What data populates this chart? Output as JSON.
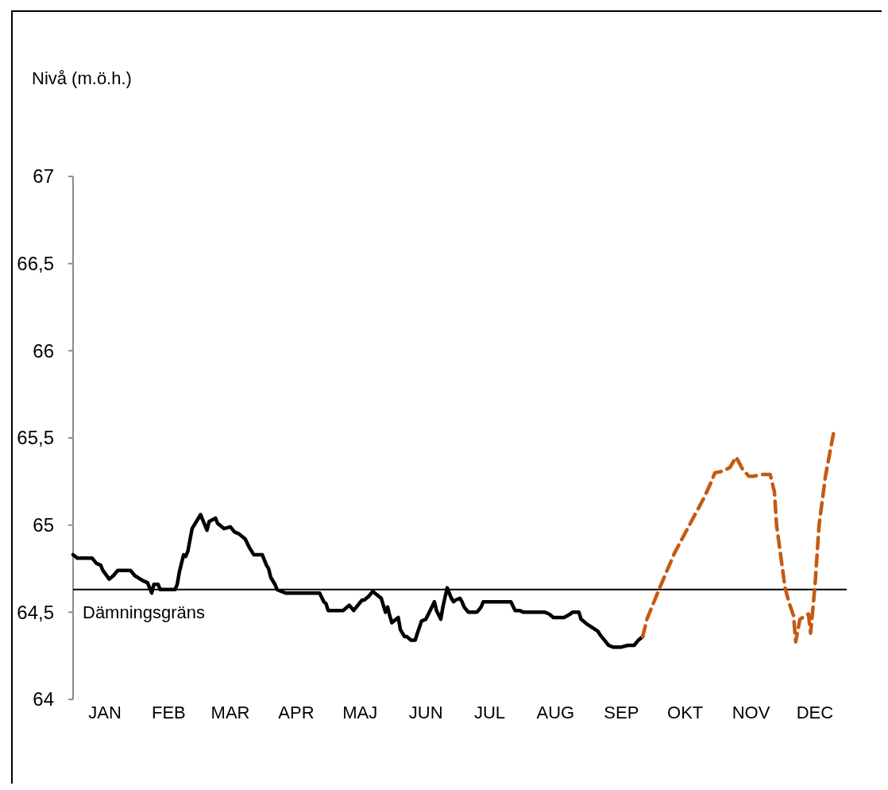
{
  "chart_data": {
    "type": "line",
    "ylabel": "Nivå (m.ö.h.)",
    "xlim": [
      "--01-01",
      "--12-31"
    ],
    "xticks": [
      {
        "value": "--01-16",
        "label": "JAN"
      },
      {
        "value": "--02-15",
        "label": "FEB"
      },
      {
        "value": "--03-16",
        "label": "MAR"
      },
      {
        "value": "--04-16",
        "label": "APR"
      },
      {
        "value": "--05-16",
        "label": "MAJ"
      },
      {
        "value": "--06-16",
        "label": "JUN"
      },
      {
        "value": "--07-16",
        "label": "JUL"
      },
      {
        "value": "--08-16",
        "label": "AUG"
      },
      {
        "value": "--09-16",
        "label": "SEP"
      },
      {
        "value": "--10-16",
        "label": "OKT"
      },
      {
        "value": "--11-16",
        "label": "NOV"
      },
      {
        "value": "--12-16",
        "label": "DEC"
      }
    ],
    "ylim": [
      64,
      67
    ],
    "yticks": [
      64,
      {
        "value": 64.5,
        "label": "64,5"
      },
      65,
      {
        "value": 65.5,
        "label": "65,5"
      },
      66,
      {
        "value": 66.5,
        "label": "66,5"
      },
      67
    ],
    "grid": false,
    "marker": "none",
    "ref_lines": [
      {
        "axis": "y",
        "value": 64.63,
        "label": "Dämningsgräns",
        "color": "#000000"
      }
    ],
    "series": [
      {
        "color": "#000000",
        "line_style": "solid",
        "x": [
          "--01-01",
          "--01-03",
          "--01-10",
          "--01-12",
          "--01-14",
          "--01-15",
          "--01-18",
          "--01-20",
          "--01-22",
          "--01-28",
          "--01-30",
          "--02-03",
          "--02-05",
          "--02-07",
          "--02-08",
          "--02-10",
          "--02-11",
          "--02-18",
          "--02-19",
          "--02-20",
          "--02-22",
          "--02-23",
          "--02-24",
          "--02-26",
          "--03-02",
          "--03-03",
          "--03-05",
          "--03-06",
          "--03-09",
          "--03-10",
          "--03-13",
          "--03-16",
          "--03-18",
          "--03-20",
          "--03-23",
          "--03-25",
          "--03-27",
          "--03-31",
          "--04-02",
          "--04-03",
          "--04-04",
          "--04-06",
          "--04-07",
          "--04-11",
          "--04-27",
          "--04-29",
          "--04-30",
          "--05-01",
          "--05-08",
          "--05-11",
          "--05-13",
          "--05-17",
          "--05-18",
          "--05-20",
          "--05-22",
          "--05-24",
          "--05-26",
          "--05-28",
          "--05-29",
          "--05-30",
          "--05-31",
          "--06-03",
          "--06-04",
          "--06-06",
          "--06-07",
          "--06-09",
          "--06-11",
          "--06-12",
          "--06-14",
          "--06-16",
          "--06-18",
          "--06-20",
          "--06-21",
          "--06-23",
          "--06-24",
          "--06-26",
          "--06-28",
          "--06-29",
          "--06-30",
          "--07-02",
          "--07-03",
          "--07-04",
          "--07-06",
          "--07-10",
          "--07-12",
          "--07-13",
          "--07-26",
          "--07-28",
          "--07-30",
          "--08-01",
          "--08-11",
          "--08-13",
          "--08-15",
          "--08-20",
          "--08-23",
          "--08-24",
          "--08-27",
          "--08-28",
          "--08-31",
          "--09-05",
          "--09-06",
          "--09-08",
          "--09-10",
          "--09-12",
          "--09-16",
          "--09-19",
          "--09-22",
          "--09-24",
          "--09-26"
        ],
        "values": [
          64.83,
          64.81,
          64.81,
          64.78,
          64.77,
          64.74,
          64.69,
          64.71,
          64.74,
          64.74,
          64.71,
          64.68,
          64.67,
          64.61,
          64.66,
          64.66,
          64.63,
          64.63,
          64.66,
          64.73,
          64.83,
          64.82,
          64.85,
          64.98,
          65.06,
          65.03,
          64.97,
          65.02,
          65.04,
          65.01,
          64.98,
          64.99,
          64.96,
          64.95,
          64.92,
          64.87,
          64.83,
          64.83,
          64.77,
          64.75,
          64.7,
          64.66,
          64.63,
          64.61,
          64.61,
          64.56,
          64.55,
          64.51,
          64.51,
          64.54,
          64.51,
          64.57,
          64.57,
          64.59,
          64.62,
          64.6,
          64.58,
          64.5,
          64.53,
          64.48,
          64.44,
          64.47,
          64.4,
          64.36,
          64.36,
          64.34,
          64.34,
          64.38,
          64.45,
          64.46,
          64.51,
          64.56,
          64.51,
          64.46,
          64.53,
          64.64,
          64.58,
          64.56,
          64.57,
          64.58,
          64.56,
          64.53,
          64.5,
          64.5,
          64.53,
          64.56,
          64.56,
          64.51,
          64.51,
          64.5,
          64.5,
          64.49,
          64.47,
          64.47,
          64.49,
          64.5,
          64.5,
          64.46,
          64.43,
          64.39,
          64.37,
          64.34,
          64.31,
          64.3,
          64.3,
          64.31,
          64.31,
          64.34,
          64.36
        ]
      },
      {
        "color": "#c55a11",
        "line_style": "dashed",
        "x": [
          "--09-26",
          "--09-28",
          "--10-04",
          "--10-11",
          "--10-18",
          "--10-25",
          "--10-28",
          "--10-30",
          "--11-03",
          "--11-06",
          "--11-09",
          "--11-12",
          "--11-15",
          "--11-17",
          "--11-21",
          "--11-25",
          "--11-27",
          "--11-28",
          "--11-30",
          "--12-02",
          "--12-04",
          "--12-06",
          "--12-07",
          "--12-09",
          "--12-13",
          "--12-14",
          "--12-16",
          "--12-18",
          "--12-21",
          "--12-25"
        ],
        "values": [
          64.36,
          64.46,
          64.64,
          64.84,
          65.0,
          65.16,
          65.24,
          65.3,
          65.31,
          65.33,
          65.39,
          65.32,
          65.28,
          65.28,
          65.29,
          65.29,
          65.19,
          65.0,
          64.82,
          64.64,
          64.55,
          64.48,
          64.33,
          64.46,
          64.49,
          64.38,
          64.64,
          65.0,
          65.28,
          65.54
        ]
      }
    ]
  }
}
